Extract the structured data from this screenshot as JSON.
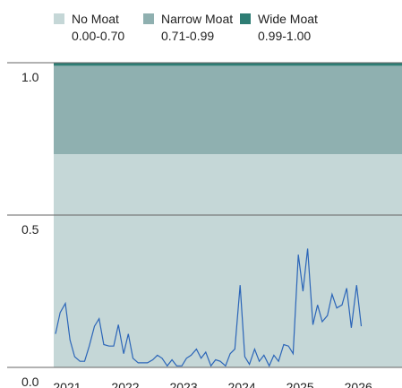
{
  "chart_data": {
    "type": "line",
    "bands": [
      {
        "name": "No Moat",
        "label": "0.00-0.70",
        "from": 0,
        "to": 0.7,
        "color": "#c5d7d7"
      },
      {
        "name": "Narrow Moat",
        "label": "0.71-0.99",
        "from": 0.7,
        "to": 0.99,
        "color": "#8fb0b0"
      },
      {
        "name": "Wide Moat",
        "label": "0.99-1.00",
        "from": 0.99,
        "to": 1,
        "color": "#2e7d74"
      }
    ],
    "x": [
      2020.8,
      2020.88,
      2020.97,
      2021.05,
      2021.13,
      2021.22,
      2021.3,
      2021.38,
      2021.47,
      2021.55,
      2021.63,
      2021.72,
      2021.8,
      2021.88,
      2021.97,
      2022.05,
      2022.13,
      2022.22,
      2022.3,
      2022.38,
      2022.47,
      2022.55,
      2022.63,
      2022.72,
      2022.8,
      2022.88,
      2022.97,
      2023.05,
      2023.13,
      2023.22,
      2023.3,
      2023.38,
      2023.47,
      2023.55,
      2023.63,
      2023.72,
      2023.8,
      2023.88,
      2023.97,
      2024.05,
      2024.13,
      2024.22,
      2024.3,
      2024.38,
      2024.47,
      2024.55,
      2024.63,
      2024.72,
      2024.8,
      2024.88,
      2024.97,
      2025.05,
      2025.13,
      2025.22,
      2025.3,
      2025.38,
      2025.47,
      2025.55,
      2025.63,
      2025.72,
      2025.8,
      2025.88,
      2025.97,
      2026.05
    ],
    "values": [
      0.11,
      0.18,
      0.21,
      0.09,
      0.035,
      0.02,
      0.02,
      0.07,
      0.135,
      0.16,
      0.075,
      0.07,
      0.07,
      0.14,
      0.045,
      0.11,
      0.03,
      0.015,
      0.015,
      0.015,
      0.025,
      0.04,
      0.03,
      0.005,
      0.025,
      0.005,
      0.005,
      0.03,
      0.04,
      0.06,
      0.03,
      0.05,
      0.005,
      0.025,
      0.02,
      0.005,
      0.045,
      0.06,
      0.27,
      0.035,
      0.01,
      0.06,
      0.02,
      0.04,
      0.005,
      0.04,
      0.02,
      0.075,
      0.07,
      0.045,
      0.37,
      0.25,
      0.39,
      0.14,
      0.205,
      0.15,
      0.17,
      0.24,
      0.195,
      0.205,
      0.26,
      0.13,
      0.27,
      0.135
    ],
    "color": "#2b65b8",
    "xlim": [
      2020.77,
      2026.75
    ],
    "xticks": [
      2021,
      2022,
      2023,
      2024,
      2025,
      2026
    ],
    "ylim": [
      0,
      1
    ],
    "yticks": [
      {
        "value": 0,
        "label": "0.0"
      },
      {
        "value": 0.5,
        "label": "0.5"
      },
      {
        "value": 1,
        "label": "1.0"
      }
    ],
    "grid": true
  }
}
